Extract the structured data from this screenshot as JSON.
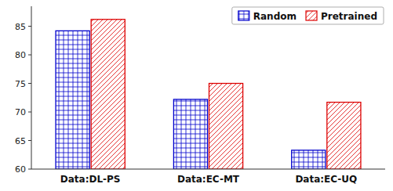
{
  "chart_data": {
    "type": "bar",
    "categories": [
      "Data:DL-PS",
      "Data:EC-MT",
      "Data:EC-UQ"
    ],
    "series": [
      {
        "name": "Random",
        "color": "#0000cc",
        "values": [
          84.2,
          72.2,
          63.3
        ]
      },
      {
        "name": "Pretrained",
        "color": "#dd0000",
        "values": [
          86.2,
          75.0,
          71.7
        ]
      }
    ],
    "ylim": [
      60,
      88.5
    ],
    "yticks": [
      60,
      65,
      70,
      75,
      80,
      85
    ],
    "legend": "upper right"
  }
}
